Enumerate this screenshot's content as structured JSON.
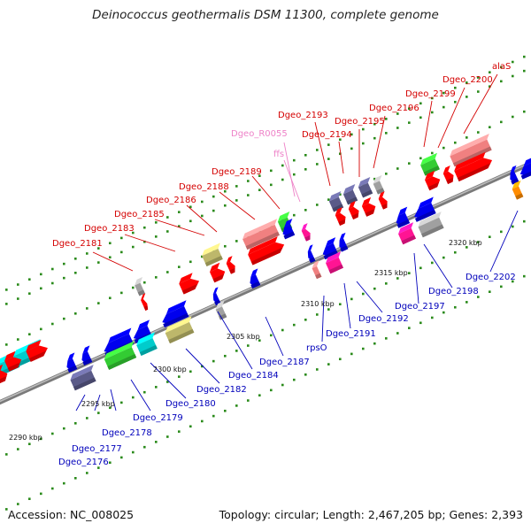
{
  "title": "Deinococcus geothermalis DSM 11300, complete genome",
  "accession_label": "Accession: NC_008025",
  "summary_label": "Topology: circular; Length: 2,467,205 bp; Genes: 2,393",
  "colors": {
    "forward_label": "#d40000",
    "reverse_label": "#0000bb",
    "rna_label": "#ee82c8",
    "backbone": "#808080",
    "tick_dot": "#2a8a1a",
    "forward_cds": "#ff0000",
    "reverse_cds": "#0000ee",
    "cyan": "#00cccc",
    "green": "#33cc33",
    "khaki": "#bdb76b",
    "magenta": "#ff1493",
    "salmon": "#f08080",
    "grey": "#a0a0a0",
    "dark_slate": "#5a5a88",
    "orange": "#ff8c00"
  },
  "ticks": [
    {
      "label": "2290 kbp"
    },
    {
      "label": "2295 kbp"
    },
    {
      "label": "2300 kbp"
    },
    {
      "label": "2305 kbp"
    },
    {
      "label": "2310 kbp"
    },
    {
      "label": "2315 kbp"
    },
    {
      "label": "2320 kbp"
    }
  ],
  "forward_labels": [
    {
      "text": "Dgeo_2181"
    },
    {
      "text": "Dgeo_2183"
    },
    {
      "text": "Dgeo_2185"
    },
    {
      "text": "Dgeo_2186"
    },
    {
      "text": "Dgeo_2188"
    },
    {
      "text": "Dgeo_2189"
    },
    {
      "text": "Dgeo_R0055"
    },
    {
      "text": "ffs"
    },
    {
      "text": "Dgeo_2193"
    },
    {
      "text": "Dgeo_2194"
    },
    {
      "text": "Dgeo_2195"
    },
    {
      "text": "Dgeo_2196"
    },
    {
      "text": "Dgeo_2199"
    },
    {
      "text": "Dgeo_2200"
    },
    {
      "text": "alaS"
    }
  ],
  "reverse_labels": [
    {
      "text": "Dgeo_2176"
    },
    {
      "text": "Dgeo_2177"
    },
    {
      "text": "Dgeo_2178"
    },
    {
      "text": "Dgeo_2179"
    },
    {
      "text": "Dgeo_2180"
    },
    {
      "text": "Dgeo_2182"
    },
    {
      "text": "Dgeo_2184"
    },
    {
      "text": "Dgeo_2187"
    },
    {
      "text": "rpsO"
    },
    {
      "text": "Dgeo_2191"
    },
    {
      "text": "Dgeo_2192"
    },
    {
      "text": "Dgeo_2197"
    },
    {
      "text": "Dgeo_2198"
    },
    {
      "text": "Dgeo_2202"
    }
  ]
}
